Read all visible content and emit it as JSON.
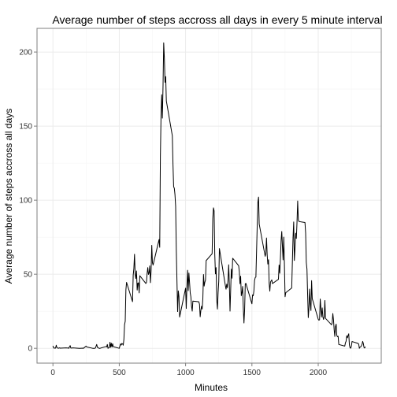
{
  "chart_data": {
    "type": "line",
    "title": "Average number of steps accross all days in every 5 minute interval",
    "xlabel": "Minutes",
    "ylabel": "Average number of steps accross all days",
    "xlim": [
      -120,
      2475
    ],
    "ylim": [
      -10,
      216
    ],
    "x_ticks": [
      0,
      500,
      1000,
      1500,
      2000
    ],
    "y_ticks": [
      0,
      50,
      100,
      150,
      200
    ],
    "grid": true,
    "series": [
      {
        "values": [
          [
            0,
            1.7
          ],
          [
            5,
            0.3
          ],
          [
            10,
            0.1
          ],
          [
            15,
            0.2
          ],
          [
            20,
            0.1
          ],
          [
            25,
            2.1
          ],
          [
            30,
            0.5
          ],
          [
            40,
            0.0
          ],
          [
            50,
            0.3
          ],
          [
            55,
            0.1
          ],
          [
            100,
            0.3
          ],
          [
            110,
            0.2
          ],
          [
            115,
            0.3
          ],
          [
            120,
            0.0
          ],
          [
            125,
            1.1
          ],
          [
            130,
            1.8
          ],
          [
            135,
            0.2
          ],
          [
            140,
            0.2
          ],
          [
            150,
            0.3
          ],
          [
            200,
            0.0
          ],
          [
            225,
            0.1
          ],
          [
            230,
            0.0
          ],
          [
            250,
            1.5
          ],
          [
            255,
            0.9
          ],
          [
            300,
            0.0
          ],
          [
            305,
            0.0
          ],
          [
            315,
            0.0
          ],
          [
            320,
            0.2
          ],
          [
            330,
            2.6
          ],
          [
            335,
            0.7
          ],
          [
            340,
            0.5
          ],
          [
            345,
            0.1
          ],
          [
            350,
            0.0
          ],
          [
            355,
            0.0
          ],
          [
            400,
            1.2
          ],
          [
            405,
            0.9
          ],
          [
            410,
            2.6
          ],
          [
            415,
            0.0
          ],
          [
            420,
            0.3
          ],
          [
            425,
            0.4
          ],
          [
            430,
            4.1
          ],
          [
            435,
            0.7
          ],
          [
            440,
            3.5
          ],
          [
            445,
            0.8
          ],
          [
            450,
            3.1
          ],
          [
            455,
            1.1
          ],
          [
            500,
            0.0
          ],
          [
            505,
            1.6
          ],
          [
            510,
            3.0
          ],
          [
            515,
            2.2
          ],
          [
            520,
            3.3
          ],
          [
            525,
            3.0
          ],
          [
            530,
            2.1
          ],
          [
            535,
            6.1
          ],
          [
            540,
            16.0
          ],
          [
            545,
            18.3
          ],
          [
            550,
            39.5
          ],
          [
            555,
            44.5
          ],
          [
            600,
            31.5
          ],
          [
            605,
            49.3
          ],
          [
            610,
            53.8
          ],
          [
            615,
            63.5
          ],
          [
            620,
            50.0
          ],
          [
            625,
            47.1
          ],
          [
            630,
            52.2
          ],
          [
            635,
            39.3
          ],
          [
            640,
            44.0
          ],
          [
            645,
            44.2
          ],
          [
            650,
            37.4
          ],
          [
            655,
            49.0
          ],
          [
            700,
            43.8
          ],
          [
            705,
            44.4
          ],
          [
            710,
            50.5
          ],
          [
            715,
            54.5
          ],
          [
            720,
            49.9
          ],
          [
            725,
            50.9
          ],
          [
            730,
            55.7
          ],
          [
            735,
            44.3
          ],
          [
            740,
            52.3
          ],
          [
            745,
            69.5
          ],
          [
            750,
            57.8
          ],
          [
            755,
            56.2
          ],
          [
            800,
            73.4
          ],
          [
            805,
            68.2
          ],
          [
            810,
            129.4
          ],
          [
            815,
            157.5
          ],
          [
            820,
            171.2
          ],
          [
            825,
            155.4
          ],
          [
            830,
            177.3
          ],
          [
            835,
            206.2
          ],
          [
            840,
            195.9
          ],
          [
            845,
            179.6
          ],
          [
            850,
            183.4
          ],
          [
            855,
            167.0
          ],
          [
            900,
            143.5
          ],
          [
            905,
            124.0
          ],
          [
            910,
            109.1
          ],
          [
            915,
            108.1
          ],
          [
            920,
            103.7
          ],
          [
            925,
            95.9
          ],
          [
            930,
            66.2
          ],
          [
            935,
            45.2
          ],
          [
            940,
            24.8
          ],
          [
            945,
            38.8
          ],
          [
            950,
            35.0
          ],
          [
            955,
            21.1
          ],
          [
            1000,
            40.6
          ],
          [
            1005,
            26.9
          ],
          [
            1010,
            42.4
          ],
          [
            1015,
            52.7
          ],
          [
            1020,
            38.9
          ],
          [
            1025,
            50.8
          ],
          [
            1030,
            44.3
          ],
          [
            1035,
            37.4
          ],
          [
            1040,
            34.7
          ],
          [
            1045,
            28.3
          ],
          [
            1050,
            25.1
          ],
          [
            1055,
            31.9
          ],
          [
            1100,
            31.4
          ],
          [
            1105,
            29.7
          ],
          [
            1110,
            21.3
          ],
          [
            1115,
            25.5
          ],
          [
            1120,
            28.4
          ],
          [
            1125,
            26.5
          ],
          [
            1130,
            33.3
          ],
          [
            1135,
            49.8
          ],
          [
            1140,
            42.0
          ],
          [
            1145,
            44.6
          ],
          [
            1150,
            46.0
          ],
          [
            1155,
            59.2
          ],
          [
            1200,
            63.9
          ],
          [
            1205,
            87.7
          ],
          [
            1210,
            94.8
          ],
          [
            1215,
            92.8
          ],
          [
            1220,
            63.4
          ],
          [
            1225,
            50.2
          ],
          [
            1230,
            54.5
          ],
          [
            1235,
            32.4
          ],
          [
            1240,
            26.5
          ],
          [
            1245,
            37.7
          ],
          [
            1250,
            45.1
          ],
          [
            1255,
            67.3
          ],
          [
            1300,
            42.3
          ],
          [
            1305,
            39.9
          ],
          [
            1310,
            43.3
          ],
          [
            1315,
            40.9
          ],
          [
            1320,
            46.2
          ],
          [
            1325,
            56.4
          ],
          [
            1330,
            42.8
          ],
          [
            1335,
            25.1
          ],
          [
            1340,
            40.0
          ],
          [
            1345,
            53.5
          ],
          [
            1350,
            47.3
          ],
          [
            1355,
            60.8
          ],
          [
            1400,
            55.8
          ],
          [
            1405,
            51.9
          ],
          [
            1410,
            43.6
          ],
          [
            1415,
            48.7
          ],
          [
            1420,
            35.5
          ],
          [
            1425,
            37.5
          ],
          [
            1430,
            41.8
          ],
          [
            1435,
            27.5
          ],
          [
            1440,
            17.1
          ],
          [
            1445,
            26.1
          ],
          [
            1450,
            43.6
          ],
          [
            1455,
            43.8
          ],
          [
            1500,
            30.0
          ],
          [
            1505,
            36.1
          ],
          [
            1510,
            35.5
          ],
          [
            1515,
            38.8
          ],
          [
            1520,
            45.9
          ],
          [
            1525,
            47.8
          ],
          [
            1530,
            48.1
          ],
          [
            1535,
            65.3
          ],
          [
            1540,
            82.9
          ],
          [
            1545,
            98.7
          ],
          [
            1550,
            102.1
          ],
          [
            1555,
            83.9
          ],
          [
            1600,
            62.1
          ],
          [
            1605,
            64.1
          ],
          [
            1610,
            74.5
          ],
          [
            1615,
            63.2
          ],
          [
            1620,
            56.9
          ],
          [
            1625,
            59.8
          ],
          [
            1630,
            43.9
          ],
          [
            1635,
            38.6
          ],
          [
            1640,
            44.7
          ],
          [
            1645,
            45.5
          ],
          [
            1650,
            46.2
          ],
          [
            1655,
            43.7
          ],
          [
            1700,
            46.6
          ],
          [
            1705,
            56.3
          ],
          [
            1710,
            50.7
          ],
          [
            1715,
            61.2
          ],
          [
            1720,
            72.7
          ],
          [
            1725,
            78.9
          ],
          [
            1730,
            68.9
          ],
          [
            1735,
            59.7
          ],
          [
            1740,
            75.1
          ],
          [
            1745,
            56.5
          ],
          [
            1750,
            34.8
          ],
          [
            1755,
            37.5
          ],
          [
            1800,
            40.7
          ],
          [
            1805,
            58.0
          ],
          [
            1810,
            74.7
          ],
          [
            1815,
            85.3
          ],
          [
            1820,
            59.3
          ],
          [
            1825,
            67.8
          ],
          [
            1830,
            77.7
          ],
          [
            1835,
            74.2
          ],
          [
            1840,
            85.3
          ],
          [
            1845,
            99.5
          ],
          [
            1850,
            86.6
          ],
          [
            1855,
            85.6
          ],
          [
            1900,
            84.9
          ],
          [
            1905,
            77.8
          ],
          [
            1910,
            58.0
          ],
          [
            1915,
            53.4
          ],
          [
            1920,
            36.3
          ],
          [
            1925,
            20.7
          ],
          [
            1930,
            27.4
          ],
          [
            1935,
            40.0
          ],
          [
            1940,
            30.2
          ],
          [
            1945,
            25.5
          ],
          [
            1950,
            45.7
          ],
          [
            1955,
            33.5
          ],
          [
            2000,
            19.6
          ],
          [
            2005,
            19.0
          ],
          [
            2010,
            19.3
          ],
          [
            2015,
            33.3
          ],
          [
            2020,
            26.8
          ],
          [
            2025,
            21.2
          ],
          [
            2030,
            27.3
          ],
          [
            2035,
            21.3
          ],
          [
            2040,
            19.5
          ],
          [
            2045,
            21.3
          ],
          [
            2050,
            32.3
          ],
          [
            2055,
            20.2
          ],
          [
            2100,
            15.9
          ],
          [
            2105,
            17.2
          ],
          [
            2110,
            23.5
          ],
          [
            2115,
            19.2
          ],
          [
            2120,
            12.5
          ],
          [
            2125,
            8.0
          ],
          [
            2130,
            14.7
          ],
          [
            2135,
            16.3
          ],
          [
            2140,
            8.7
          ],
          [
            2145,
            7.8
          ],
          [
            2150,
            8.1
          ],
          [
            2155,
            2.6
          ],
          [
            2200,
            1.5
          ],
          [
            2205,
            3.7
          ],
          [
            2210,
            4.8
          ],
          [
            2215,
            8.5
          ],
          [
            2220,
            7.1
          ],
          [
            2225,
            8.7
          ],
          [
            2230,
            9.8
          ],
          [
            2235,
            2.2
          ],
          [
            2240,
            0.3
          ],
          [
            2245,
            0.1
          ],
          [
            2250,
            1.6
          ],
          [
            2255,
            4.6
          ],
          [
            2300,
            3.3
          ],
          [
            2305,
            2.8
          ],
          [
            2310,
            0.0
          ],
          [
            2315,
            0.8
          ],
          [
            2320,
            1.0
          ],
          [
            2325,
            1.6
          ],
          [
            2330,
            2.6
          ],
          [
            2335,
            4.7
          ],
          [
            2340,
            3.3
          ],
          [
            2345,
            0.6
          ],
          [
            2350,
            0.2
          ],
          [
            2355,
            1.1
          ]
        ]
      }
    ]
  },
  "colors": {
    "line": "#000000",
    "grid_major": "#ebebeb",
    "grid_minor": "#f5f5f5",
    "panel_border": "#7f7f7f",
    "tick_label": "#333333"
  }
}
